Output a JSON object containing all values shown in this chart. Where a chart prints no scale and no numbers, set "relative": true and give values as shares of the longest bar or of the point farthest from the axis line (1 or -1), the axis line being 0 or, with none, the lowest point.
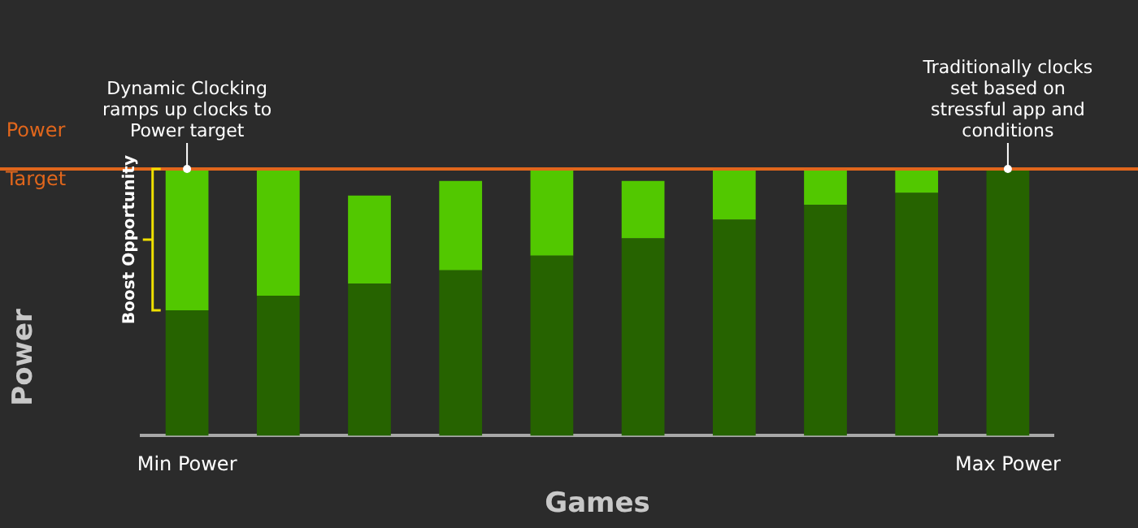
{
  "chart_data": {
    "type": "bar",
    "stacked": true,
    "relative": true,
    "xlabel": "Games",
    "ylabel": "Power",
    "categories": [
      "Min Power",
      null,
      null,
      null,
      null,
      null,
      null,
      null,
      null,
      "Max Power"
    ],
    "series": [
      {
        "color": "#266300",
        "values": [
          0.47,
          0.525,
          0.57,
          0.62,
          0.675,
          0.74,
          0.81,
          0.865,
          0.91,
          1
        ]
      },
      {
        "color": "#52c800",
        "values": [
          0.53,
          0.475,
          0.33,
          0.335,
          0.325,
          0.215,
          0.19,
          0.135,
          0.09,
          null
        ]
      }
    ],
    "ref_lines": [
      {
        "axis": "y",
        "value": 1,
        "label": "Power Target",
        "color": "#e0661c"
      }
    ],
    "annotations": [
      {
        "text": "Dynamic Clocking ramps up clocks to Power target",
        "x": "Min Power",
        "y": 1
      },
      {
        "text": "Traditionally clocks set based on stressful app and conditions",
        "x": "Max Power",
        "y": 1
      },
      "Boost Opportunity"
    ],
    "legend": false
  }
}
